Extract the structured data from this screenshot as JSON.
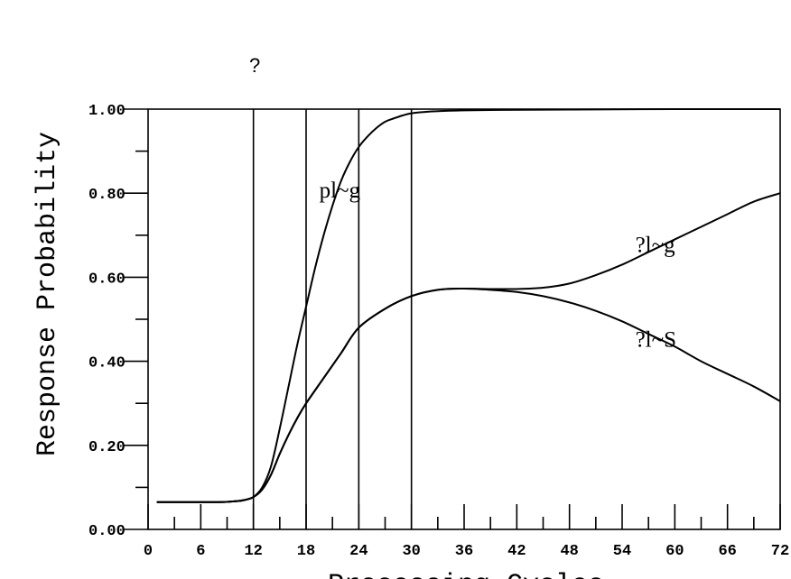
{
  "chart_data": {
    "type": "line",
    "title": "",
    "top_annotation": "?",
    "xlabel": "Processing Cycles",
    "ylabel": "Response Probability",
    "xlim": [
      0,
      72
    ],
    "ylim": [
      0,
      1
    ],
    "x_ticks": [
      0,
      6,
      12,
      18,
      24,
      30,
      36,
      42,
      48,
      54,
      60,
      66,
      72
    ],
    "x_tick_labels": [
      "0",
      "6",
      "12",
      "18",
      "24",
      "30",
      "36",
      "42",
      "48",
      "54",
      "60",
      "66",
      "72"
    ],
    "y_ticks": [
      0,
      0.2,
      0.4,
      0.6,
      0.8,
      1.0
    ],
    "y_tick_labels": [
      "0.00",
      "0.20",
      "0.40",
      "0.60",
      "0.80",
      "1.00"
    ],
    "vertical_lines": [
      12,
      18,
      24,
      30
    ],
    "grid": false,
    "series": [
      {
        "name": "pl~g",
        "x": [
          1,
          4,
          8,
          10,
          11,
          12,
          13,
          14,
          15,
          16,
          17,
          18,
          19,
          20,
          21,
          22,
          23,
          24,
          25,
          26,
          27,
          28,
          29,
          30,
          32,
          34,
          36,
          40,
          48,
          60,
          72
        ],
        "y": [
          0.065,
          0.065,
          0.065,
          0.067,
          0.07,
          0.077,
          0.1,
          0.15,
          0.24,
          0.34,
          0.44,
          0.53,
          0.62,
          0.7,
          0.77,
          0.83,
          0.875,
          0.91,
          0.935,
          0.955,
          0.97,
          0.978,
          0.985,
          0.99,
          0.994,
          0.996,
          0.997,
          0.998,
          0.999,
          1.0,
          1.0
        ],
        "label_text": "pl~g",
        "label_at": [
          19.5,
          0.79
        ]
      },
      {
        "name": "?l~g",
        "x": [
          1,
          4,
          8,
          10,
          11,
          12,
          13,
          14,
          15,
          16,
          17,
          18,
          20,
          22,
          24,
          27,
          30,
          33,
          36,
          39,
          42,
          45,
          48,
          51,
          54,
          57,
          60,
          63,
          66,
          69,
          72
        ],
        "y": [
          0.065,
          0.065,
          0.065,
          0.067,
          0.07,
          0.077,
          0.095,
          0.13,
          0.18,
          0.225,
          0.265,
          0.3,
          0.36,
          0.42,
          0.48,
          0.525,
          0.555,
          0.57,
          0.573,
          0.572,
          0.572,
          0.575,
          0.585,
          0.605,
          0.63,
          0.66,
          0.69,
          0.72,
          0.75,
          0.78,
          0.8
        ],
        "label_text": "?l~g",
        "label_at": [
          55.5,
          0.66
        ]
      },
      {
        "name": "?l~S",
        "x": [
          1,
          4,
          8,
          10,
          11,
          12,
          13,
          14,
          15,
          16,
          17,
          18,
          20,
          22,
          24,
          27,
          30,
          33,
          36,
          39,
          42,
          45,
          48,
          51,
          54,
          57,
          60,
          63,
          66,
          69,
          72
        ],
        "y": [
          0.065,
          0.065,
          0.065,
          0.067,
          0.07,
          0.077,
          0.095,
          0.13,
          0.18,
          0.225,
          0.265,
          0.3,
          0.36,
          0.42,
          0.48,
          0.525,
          0.555,
          0.57,
          0.573,
          0.57,
          0.565,
          0.555,
          0.54,
          0.52,
          0.495,
          0.465,
          0.435,
          0.4,
          0.37,
          0.34,
          0.305
        ],
        "label_text": "?l~S",
        "label_at": [
          55.5,
          0.435
        ]
      }
    ]
  }
}
